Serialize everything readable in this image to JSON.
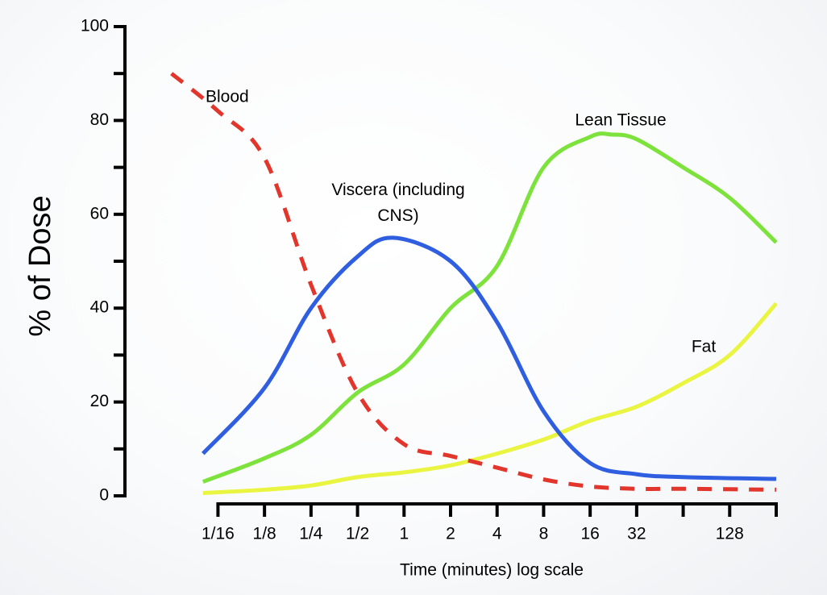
{
  "chart_data": {
    "type": "line",
    "ylabel": "% of Dose",
    "xlabel": "Time (minutes) log scale",
    "xscale": "log",
    "xlim": [
      0.015625,
      256
    ],
    "xticks": [
      {
        "value": 0.0625,
        "label": "1/16"
      },
      {
        "value": 0.125,
        "label": "1/8"
      },
      {
        "value": 0.25,
        "label": "1/4"
      },
      {
        "value": 0.5,
        "label": "1/2"
      },
      1,
      2,
      4,
      8,
      16,
      32,
      128
    ],
    "xminorticks": [
      64,
      256
    ],
    "ylim": [
      0,
      100
    ],
    "yticks": [
      0,
      20,
      40,
      60,
      80,
      100
    ],
    "yminorticks": [
      10,
      30,
      50,
      70,
      90
    ],
    "series": [
      {
        "name": "Blood",
        "color": "#e2362c",
        "style": "dashed",
        "x": [
          0.03125,
          0.0625,
          0.125,
          0.25,
          0.5,
          1,
          2,
          4,
          8,
          16,
          32,
          64,
          256
        ],
        "values": [
          90,
          82,
          72,
          45,
          22,
          11,
          8.5,
          6,
          3.5,
          2,
          1.5,
          1.5,
          1.3
        ]
      },
      {
        "name": "Viscera (including CNS)",
        "color": "#2f5fe0",
        "style": "solid",
        "x": [
          0.05,
          0.125,
          0.25,
          0.5,
          0.85,
          2,
          4,
          8,
          16,
          32,
          64,
          256
        ],
        "values": [
          9,
          23,
          40,
          51,
          55,
          50,
          37,
          18,
          7,
          4.6,
          4,
          3.6
        ]
      },
      {
        "name": "Lean Tissue",
        "color": "#7ee23c",
        "style": "solid",
        "x": [
          0.05,
          0.125,
          0.25,
          0.5,
          1,
          2,
          4,
          8,
          16,
          22,
          32,
          64,
          128,
          256
        ],
        "values": [
          3,
          8,
          13,
          22,
          28,
          40,
          49,
          70,
          76.5,
          77,
          76,
          70,
          63.5,
          54
        ]
      },
      {
        "name": "Fat",
        "color": "#e9f540",
        "style": "solid",
        "x": [
          0.05,
          0.125,
          0.25,
          0.5,
          1,
          2,
          4,
          8,
          16,
          32,
          64,
          128,
          256
        ],
        "values": [
          0.6,
          1.3,
          2.2,
          4,
          5,
          6.5,
          9,
          12,
          16,
          19,
          24,
          30,
          41
        ]
      }
    ]
  }
}
